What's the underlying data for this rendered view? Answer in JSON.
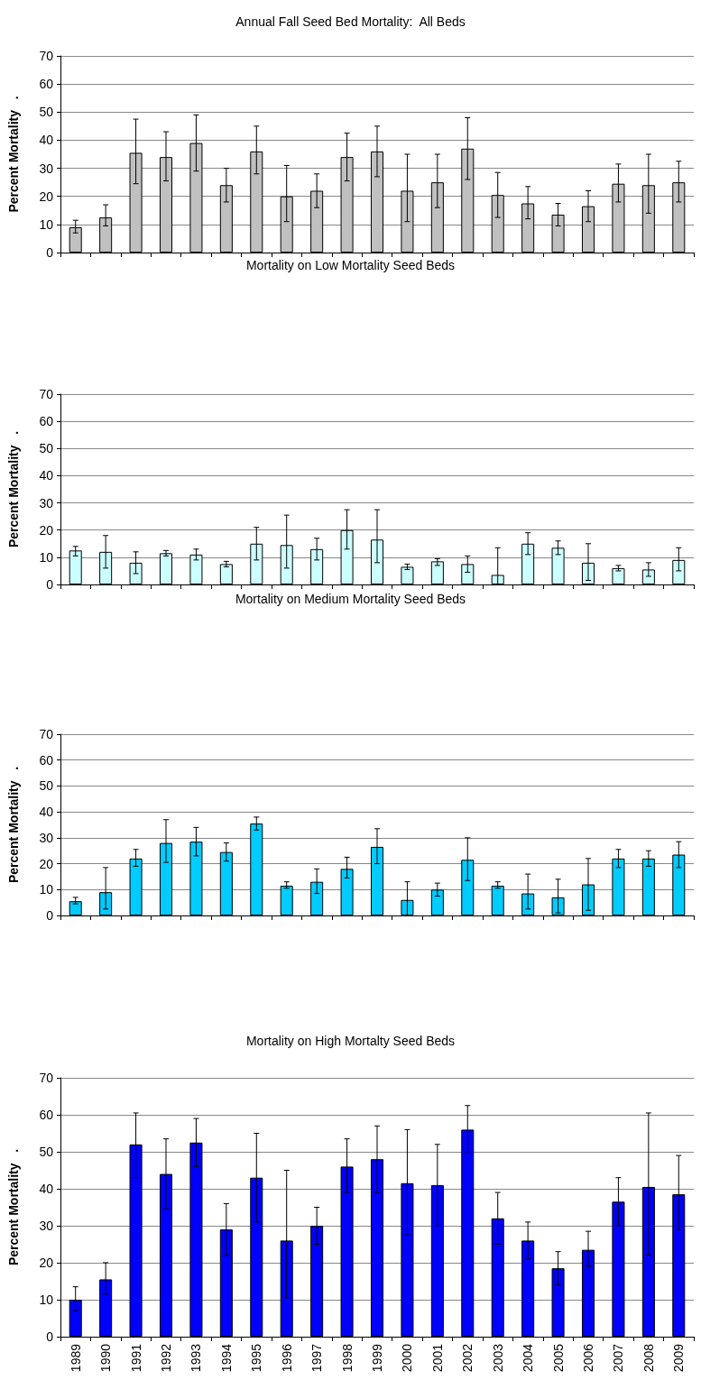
{
  "chart_data": [
    {
      "type": "bar",
      "title": "Annual Fall Seed Bed Mortality:  All Beds",
      "ylabel": "Percent Mortality   .",
      "categories": [
        "1989",
        "1990",
        "1991",
        "1992",
        "1993",
        "1994",
        "1995",
        "1996",
        "1997",
        "1998",
        "1999",
        "2000",
        "2001",
        "2002",
        "2003",
        "2004",
        "2005",
        "2006",
        "2007",
        "2008",
        "2009"
      ],
      "tick_labels": "y",
      "grid": "y",
      "ylim": [
        0,
        70
      ],
      "yticks": [
        0,
        10,
        20,
        30,
        40,
        50,
        60,
        70
      ],
      "series": [
        {
          "color": "#c0c0c0",
          "values": [
            9,
            12.5,
            35.5,
            34,
            39,
            24,
            36,
            20,
            22,
            34,
            36,
            22,
            25,
            37,
            20.5,
            17.5,
            13.5,
            16.5,
            24.5,
            24,
            25
          ],
          "errors": [
            [
              7,
              11.5
            ],
            [
              9.5,
              17
            ],
            [
              24.5,
              47.5
            ],
            [
              25.5,
              43
            ],
            [
              29,
              49
            ],
            [
              18,
              30
            ],
            [
              28,
              45
            ],
            [
              11,
              31
            ],
            [
              16,
              28
            ],
            [
              25.5,
              42.5
            ],
            [
              27,
              45
            ],
            [
              11,
              35
            ],
            [
              16,
              35
            ],
            [
              26,
              48
            ],
            [
              12.5,
              28.5
            ],
            [
              12,
              23.5
            ],
            [
              9.5,
              17.5
            ],
            [
              11,
              22
            ],
            [
              18,
              31.5
            ],
            [
              14,
              35
            ],
            [
              18,
              32.5
            ]
          ]
        }
      ]
    },
    {
      "type": "bar",
      "title": "Mortality on Low Mortality Seed Beds",
      "ylabel": "Percent Mortality   .",
      "categories": [
        "1989",
        "1990",
        "1991",
        "1992",
        "1993",
        "1994",
        "1995",
        "1996",
        "1997",
        "1998",
        "1999",
        "2000",
        "2001",
        "2002",
        "2003",
        "2004",
        "2005",
        "2006",
        "2007",
        "2008",
        "2009"
      ],
      "tick_labels": "y",
      "grid": "y",
      "ylim": [
        0,
        70
      ],
      "yticks": [
        0,
        10,
        20,
        30,
        40,
        50,
        60,
        70
      ],
      "series": [
        {
          "color": "#ccffff",
          "values": [
            12.5,
            12,
            8,
            11.5,
            11,
            7.5,
            15,
            14.5,
            13,
            20,
            16.5,
            6.5,
            8.5,
            7.5,
            3.5,
            15,
            13.5,
            8,
            6,
            5.5,
            9
          ],
          "errors": [
            [
              10.5,
              14
            ],
            [
              6,
              18
            ],
            [
              4,
              12
            ],
            [
              10.5,
              12.5
            ],
            [
              9,
              13
            ],
            [
              6.5,
              8.5
            ],
            [
              9,
              21
            ],
            [
              6,
              25.5
            ],
            [
              9,
              17
            ],
            [
              13,
              27.5
            ],
            [
              8,
              27.5
            ],
            [
              5.5,
              7.5
            ],
            [
              7,
              9.5
            ],
            [
              4.5,
              10.5
            ],
            [
              0,
              13.5
            ],
            [
              11,
              19
            ],
            [
              11,
              16
            ],
            [
              1.5,
              15
            ],
            [
              5,
              7
            ],
            [
              3,
              8
            ],
            [
              5,
              13.5
            ]
          ]
        }
      ]
    },
    {
      "type": "bar",
      "title": "Mortality on Medium Mortality Seed Beds",
      "ylabel": "Percent Mortality   .",
      "categories": [
        "1989",
        "1990",
        "1991",
        "1992",
        "1993",
        "1994",
        "1995",
        "1996",
        "1997",
        "1998",
        "1999",
        "2000",
        "2001",
        "2002",
        "2003",
        "2004",
        "2005",
        "2006",
        "2007",
        "2008",
        "2009"
      ],
      "tick_labels": "y",
      "grid": "y",
      "ylim": [
        0,
        70
      ],
      "yticks": [
        0,
        10,
        20,
        30,
        40,
        50,
        60,
        70
      ],
      "series": [
        {
          "color": "#00ccff",
          "values": [
            5.5,
            9,
            22,
            28,
            28.5,
            24.5,
            35.5,
            11.5,
            13,
            18,
            26.5,
            6,
            10,
            21.5,
            11.5,
            8.5,
            7,
            12,
            22,
            22,
            23.5
          ],
          "errors": [
            [
              4.5,
              7
            ],
            [
              2.5,
              18.5
            ],
            [
              19,
              25.5
            ],
            [
              20.5,
              37
            ],
            [
              23,
              34
            ],
            [
              21,
              28
            ],
            [
              33,
              38
            ],
            [
              10.5,
              13
            ],
            [
              8.5,
              18
            ],
            [
              14.5,
              22.5
            ],
            [
              20,
              33.5
            ],
            [
              0,
              13
            ],
            [
              7.5,
              12.5
            ],
            [
              13.5,
              30
            ],
            [
              10.5,
              13
            ],
            [
              2.5,
              16
            ],
            [
              1,
              14
            ],
            [
              2,
              22
            ],
            [
              18.5,
              25.5
            ],
            [
              19,
              25
            ],
            [
              18.5,
              28.5
            ]
          ]
        }
      ]
    },
    {
      "type": "bar",
      "title": "Mortality on High Mortalty Seed Beds",
      "ylabel": "Percent Mortality   .",
      "categories": [
        "1989",
        "1990",
        "1991",
        "1992",
        "1993",
        "1994",
        "1995",
        "1996",
        "1997",
        "1998",
        "1999",
        "2000",
        "2001",
        "2002",
        "2003",
        "2004",
        "2005",
        "2006",
        "2007",
        "2008",
        "2009"
      ],
      "grid": "y",
      "ylim": [
        0,
        70
      ],
      "yticks": [
        0,
        10,
        20,
        30,
        40,
        50,
        60,
        70
      ],
      "series": [
        {
          "color": "#0000ff",
          "values": [
            10,
            15.5,
            52,
            44,
            52.5,
            29,
            43,
            26,
            30,
            46,
            48,
            41.5,
            41,
            56,
            32,
            26,
            18.5,
            23.5,
            36.5,
            40.5,
            38.5
          ],
          "errors": [
            [
              7,
              13.5
            ],
            [
              11.5,
              20
            ],
            [
              43,
              60.5
            ],
            [
              34.5,
              53.5
            ],
            [
              46,
              59
            ],
            [
              22,
              36
            ],
            [
              31,
              55
            ],
            [
              10.5,
              45
            ],
            [
              25,
              35
            ],
            [
              39,
              53.5
            ],
            [
              39,
              57
            ],
            [
              27.5,
              56
            ],
            [
              30,
              52
            ],
            [
              50,
              62.5
            ],
            [
              25,
              39
            ],
            [
              21,
              31
            ],
            [
              14,
              23
            ],
            [
              19,
              28.5
            ],
            [
              30,
              43
            ],
            [
              22,
              60.5
            ],
            [
              29,
              49
            ]
          ]
        }
      ]
    }
  ]
}
